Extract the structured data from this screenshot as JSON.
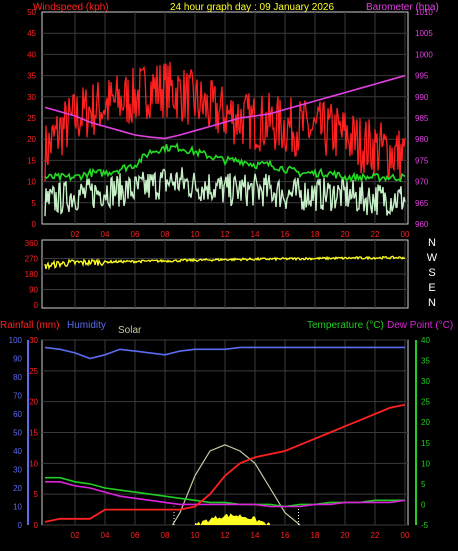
{
  "colors": {
    "background": "#000000",
    "grid": "#3a3a3a",
    "border": "#cfcfcf",
    "wind_speed": "#ff2020",
    "wind_avg": "#ffffff",
    "wind_light": "#c8f0c8",
    "wind_avg_green": "#22dd22",
    "barometer": "#e040e0",
    "direction": "#ffff22",
    "rain": "#ff2020",
    "humidity": "#5a6cf0",
    "solar": "#c8c8a0",
    "solar_fill": "#ffff22",
    "temperature": "#22cc22",
    "dewpoint": "#dd22dd"
  },
  "header": {
    "wind_label": "Windspeed (kph)",
    "title": "24 hour graph day : 09 January 2026",
    "baro_label": "Barometer (hpa)"
  },
  "chart_data": [
    {
      "type": "line",
      "name": "wind-and-barometer",
      "x_ticks": [
        "02",
        "04",
        "06",
        "08",
        "10",
        "12",
        "14",
        "16",
        "18",
        "20",
        "22",
        "00"
      ],
      "y_left_label": "Windspeed (kph)",
      "y_left_ticks": [
        "0",
        "5",
        "10",
        "15",
        "20",
        "25",
        "30",
        "35",
        "40",
        "45",
        "50"
      ],
      "ylim_left": [
        0,
        50
      ],
      "y_right_label": "Barometer (hpa)",
      "y_right_ticks": [
        "960",
        "965",
        "970",
        "975",
        "980",
        "985",
        "990",
        "995",
        "1000",
        "1005",
        "1010"
      ],
      "ylim_right": [
        960,
        1010
      ],
      "grid": true,
      "series": [
        {
          "key": "gust",
          "x": [
            0,
            1,
            2,
            3,
            4,
            5,
            6,
            7,
            8,
            9,
            10,
            11,
            12,
            13,
            14,
            15,
            16,
            17,
            18,
            19,
            20,
            21,
            22,
            23,
            24
          ],
          "values": [
            17,
            22,
            25,
            27,
            28,
            29,
            30,
            32,
            32,
            31,
            29,
            27,
            26,
            25,
            24,
            24,
            23,
            23,
            22,
            22,
            21,
            19,
            18,
            17,
            16
          ]
        },
        {
          "key": "avg_green",
          "x": [
            0,
            1,
            2,
            3,
            4,
            5,
            6,
            7,
            8,
            9,
            10,
            11,
            12,
            13,
            14,
            15,
            16,
            17,
            18,
            19,
            20,
            21,
            22,
            23,
            24
          ],
          "values": [
            11,
            11,
            11,
            12,
            12,
            13,
            14,
            17,
            18,
            18,
            17,
            16,
            15,
            15,
            14,
            14,
            13,
            12,
            12,
            12,
            11,
            11,
            11,
            11,
            11
          ]
        },
        {
          "key": "wind_avg",
          "x": [
            0,
            1,
            2,
            3,
            4,
            5,
            6,
            7,
            8,
            9,
            10,
            11,
            12,
            13,
            14,
            15,
            16,
            17,
            18,
            19,
            20,
            21,
            22,
            23,
            24
          ],
          "values": [
            5,
            6,
            7,
            7,
            8,
            8,
            8,
            9,
            10,
            10,
            9,
            9,
            8,
            8,
            8,
            8,
            7,
            7,
            7,
            7,
            7,
            6,
            6,
            6,
            6
          ]
        },
        {
          "key": "barometer",
          "x": [
            0,
            1,
            2,
            3,
            4,
            5,
            6,
            7,
            8,
            9,
            10,
            11,
            12,
            13,
            14,
            15,
            16,
            17,
            18,
            19,
            20,
            21,
            22,
            23,
            24
          ],
          "values": [
            987.5,
            986.5,
            985.5,
            984,
            983,
            982,
            981,
            980.5,
            980.2,
            981,
            982,
            983,
            984,
            985,
            985.5,
            986,
            987,
            988,
            989,
            990,
            991,
            992,
            993,
            994,
            995
          ]
        }
      ]
    },
    {
      "type": "line",
      "name": "wind-direction",
      "x_ticks": [
        "02",
        "04",
        "06",
        "08",
        "10",
        "12",
        "14",
        "16",
        "18",
        "20",
        "22",
        "00"
      ],
      "y_ticks": [
        "0",
        "90",
        "180",
        "270",
        "360"
      ],
      "ylim": [
        0,
        360
      ],
      "compass_labels": [
        "N",
        "W",
        "S",
        "E",
        "N"
      ],
      "series": [
        {
          "key": "direction",
          "x": [
            0,
            1,
            2,
            3,
            4,
            5,
            6,
            7,
            8,
            9,
            10,
            11,
            12,
            13,
            14,
            15,
            16,
            17,
            18,
            19,
            20,
            21,
            22,
            23,
            24
          ],
          "values": [
            225,
            240,
            245,
            248,
            250,
            252,
            253,
            255,
            256,
            258,
            260,
            262,
            264,
            265,
            266,
            267,
            268,
            269,
            270,
            271,
            272,
            273,
            274,
            275,
            275
          ]
        }
      ]
    },
    {
      "type": "line",
      "name": "rain-humidity-temperature",
      "header_labels": {
        "rain": "Rainfall (mm)",
        "humidity": "Humidity",
        "solar": "Solar",
        "temperature": "Temperature (°C)",
        "dewpoint": "Dew Point (°C)"
      },
      "x_ticks": [
        "02",
        "04",
        "06",
        "08",
        "10",
        "12",
        "14",
        "16",
        "18",
        "20",
        "22",
        "00"
      ],
      "y_humidity_ticks": [
        "0",
        "10",
        "20",
        "30",
        "40",
        "50",
        "60",
        "70",
        "80",
        "90",
        "100"
      ],
      "ylim_humidity": [
        0,
        100
      ],
      "y_rain_ticks": [
        "0",
        "5",
        "10",
        "15",
        "20",
        "25",
        "30"
      ],
      "ylim_rain": [
        0,
        30
      ],
      "y_temp_ticks": [
        "-5",
        "0",
        "5",
        "10",
        "15",
        "20",
        "25",
        "30",
        "35",
        "40"
      ],
      "ylim_temp": [
        -5,
        40
      ],
      "series": [
        {
          "key": "humidity",
          "x": [
            0,
            1,
            2,
            3,
            4,
            5,
            6,
            7,
            8,
            9,
            10,
            11,
            12,
            13,
            14,
            15,
            16,
            17,
            18,
            19,
            20,
            21,
            22,
            23,
            24
          ],
          "values": [
            96,
            95,
            93,
            90,
            92,
            95,
            94,
            93,
            92,
            94,
            95,
            95,
            95,
            96,
            96,
            96,
            96,
            96,
            96,
            96,
            96,
            96,
            96,
            96,
            96
          ]
        },
        {
          "key": "rain",
          "x": [
            0,
            1,
            2,
            3,
            4,
            5,
            6,
            7,
            8,
            9,
            10,
            11,
            12,
            13,
            14,
            15,
            16,
            17,
            18,
            19,
            20,
            21,
            22,
            23,
            24
          ],
          "values": [
            0.5,
            1,
            1,
            1,
            2.5,
            2.5,
            2.5,
            2.5,
            2.5,
            2.5,
            3,
            5,
            8,
            10,
            11,
            11.5,
            12,
            13,
            14,
            15,
            16,
            17,
            18,
            19,
            19.5
          ]
        },
        {
          "key": "temperature",
          "x": [
            0,
            1,
            2,
            3,
            4,
            5,
            6,
            7,
            8,
            9,
            10,
            11,
            12,
            13,
            14,
            15,
            16,
            17,
            18,
            19,
            20,
            21,
            22,
            23,
            24
          ],
          "values": [
            6.5,
            6.5,
            5.5,
            5,
            4,
            3.5,
            3,
            2.5,
            2,
            1.5,
            1,
            0.5,
            0.5,
            0,
            0,
            0,
            -0.5,
            0,
            0,
            0.5,
            0.5,
            0.5,
            1,
            1,
            1
          ]
        },
        {
          "key": "dewpoint",
          "x": [
            0,
            1,
            2,
            3,
            4,
            5,
            6,
            7,
            8,
            9,
            10,
            11,
            12,
            13,
            14,
            15,
            16,
            17,
            18,
            19,
            20,
            21,
            22,
            23,
            24
          ],
          "values": [
            5.5,
            5.5,
            4.5,
            4,
            3,
            2,
            1.5,
            1,
            0.5,
            0,
            0,
            0,
            0,
            0,
            0,
            -0.5,
            -0.5,
            -0.5,
            0,
            0,
            0.5,
            0.5,
            0.5,
            0.5,
            1
          ]
        },
        {
          "key": "solar",
          "x": [
            8.5,
            9,
            10,
            11,
            12,
            13,
            14,
            15,
            16,
            17
          ],
          "values": [
            0,
            2,
            8,
            12,
            13,
            12,
            10,
            6,
            2,
            0
          ]
        }
      ]
    }
  ]
}
